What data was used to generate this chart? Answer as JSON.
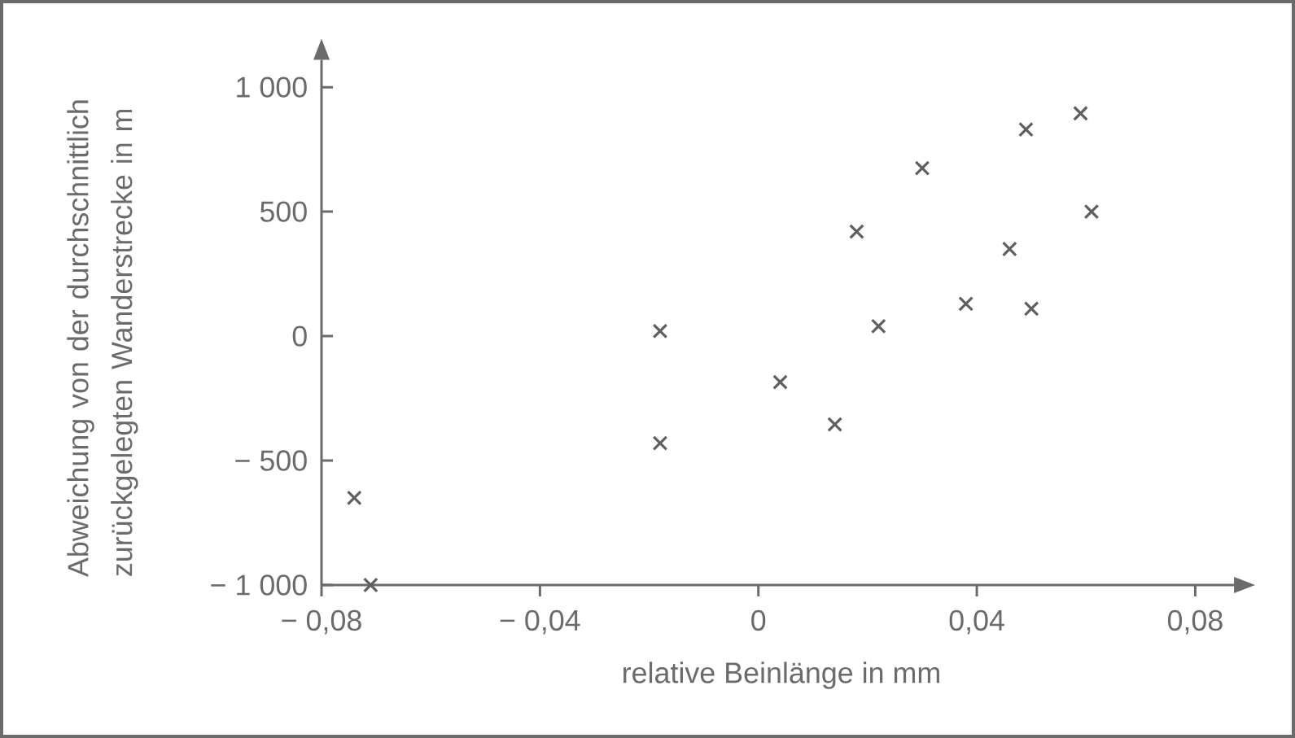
{
  "chart_data": {
    "type": "scatter",
    "xlabel": "relative Beinlänge in mm",
    "ylabel": "Abweichung von der durchschnittlich zurückgelegten Wanderstrecke in m",
    "x": [
      -0.074,
      -0.071,
      -0.018,
      -0.018,
      0.004,
      0.014,
      0.018,
      0.022,
      0.03,
      0.038,
      0.046,
      0.049,
      0.05,
      0.059,
      0.061
    ],
    "values": [
      -650,
      -1000,
      20,
      -430,
      -185,
      -355,
      420,
      40,
      675,
      130,
      350,
      830,
      110,
      895,
      500
    ],
    "color": "#5f5f5f",
    "marker": "cross",
    "grid": false,
    "xlim": [
      -0.08,
      0.0871
    ],
    "ylim": [
      -1000,
      1110
    ],
    "xticks": [
      {
        "value": -0.08,
        "label": "− 0,08"
      },
      {
        "value": -0.04,
        "label": "− 0,04"
      },
      0,
      {
        "value": 0.04,
        "label": "0,04"
      },
      {
        "value": 0.08,
        "label": "0,08"
      }
    ],
    "yticks": [
      {
        "value": -1000,
        "label": "− 1 000"
      },
      {
        "value": -500,
        "label": "− 500"
      },
      0,
      500,
      {
        "value": 1000,
        "label": "1 000"
      }
    ]
  }
}
